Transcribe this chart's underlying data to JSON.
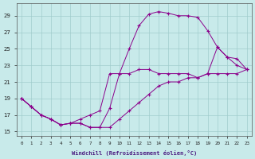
{
  "xlabel": "Windchill (Refroidissement éolien,°C)",
  "background_color": "#c8eaea",
  "grid_color": "#a0cccc",
  "line_color": "#8B008B",
  "xlim": [
    -0.5,
    23.5
  ],
  "ylim": [
    14.5,
    30.5
  ],
  "xticks": [
    0,
    1,
    2,
    3,
    4,
    5,
    6,
    7,
    8,
    9,
    10,
    11,
    12,
    13,
    14,
    15,
    16,
    17,
    18,
    19,
    20,
    21,
    22,
    23
  ],
  "yticks": [
    15,
    17,
    19,
    21,
    23,
    25,
    27,
    29
  ],
  "x_hours": [
    0,
    1,
    2,
    3,
    4,
    5,
    6,
    7,
    8,
    9,
    10,
    11,
    12,
    13,
    14,
    15,
    16,
    17,
    18,
    19,
    20,
    21,
    22,
    23
  ],
  "line1_y": [
    19.0,
    18.0,
    17.0,
    16.5,
    15.8,
    16.0,
    16.0,
    15.5,
    15.5,
    15.5,
    16.5,
    17.5,
    18.5,
    19.5,
    20.5,
    21.0,
    21.0,
    21.5,
    21.5,
    22.0,
    22.0,
    22.0,
    22.0,
    22.5
  ],
  "line2_y": [
    19.0,
    18.0,
    17.0,
    16.5,
    15.8,
    16.0,
    16.0,
    15.5,
    15.5,
    17.8,
    22.0,
    25.0,
    27.8,
    29.2,
    29.5,
    29.3,
    29.0,
    29.0,
    28.8,
    27.2,
    25.2,
    24.0,
    23.0,
    22.5
  ],
  "line3_y": [
    19.0,
    18.0,
    17.0,
    16.5,
    15.8,
    16.0,
    16.5,
    17.0,
    17.5,
    22.0,
    22.0,
    22.0,
    22.5,
    22.5,
    22.0,
    22.0,
    22.0,
    22.0,
    21.5,
    22.0,
    25.2,
    24.0,
    23.8,
    22.5
  ]
}
